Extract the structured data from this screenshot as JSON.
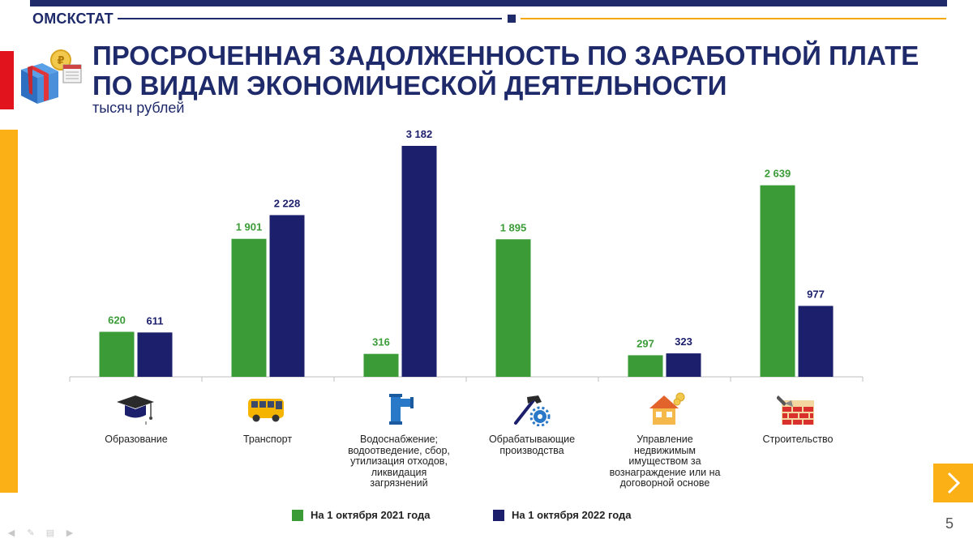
{
  "header": {
    "brand": "ОМСКСТАТ"
  },
  "title_line1": "ПРОСРОЧЕННАЯ ЗАДОЛЖЕННОСТЬ ПО ЗАРАБОТНОЙ ПЛАТЕ",
  "title_line2": "ПО ВИДАМ ЭКОНОМИЧЕСКОЙ ДЕЯТЕЛЬНОСТИ",
  "unit": "тысяч рублей",
  "colors": {
    "navy": "#1f2a6b",
    "green": "#3a9b37",
    "bar_navy": "#1c1f6b",
    "accent_yellow": "#fbb016",
    "accent_red": "#e1141e"
  },
  "chart_data": {
    "type": "bar",
    "categories": [
      "Образование",
      "Транспорт",
      "Водоснабжение; водоотведение, сбор, утилизация отходов, ликвидация загрязнений",
      "Обрабатывающие производства",
      "Управление недвижимым имуществом за вознаграждение или на договорной основе",
      "Строительство"
    ],
    "category_labels": [
      [
        "Образование"
      ],
      [
        "Транспорт"
      ],
      [
        "Водоснабжение;",
        "водоотведение, сбор,",
        "утилизация отходов,",
        "ликвидация",
        "загрязнений"
      ],
      [
        "Обрабатывающие",
        "производства"
      ],
      [
        "Управление",
        "недвижимым",
        "имуществом за",
        "вознаграждение или на",
        "договорной основе"
      ],
      [
        "Строительство"
      ]
    ],
    "category_icons": [
      "graduation-cap-icon",
      "bus-icon",
      "water-pipe-icon",
      "hammer-gear-icon",
      "house-coins-icon",
      "brick-wall-icon"
    ],
    "series": [
      {
        "name": "На 1 октября 2021 года",
        "color": "#3a9b37",
        "values": [
          620,
          1901,
          316,
          1895,
          297,
          2639
        ],
        "labels": [
          "620",
          "1 901",
          "316",
          "1 895",
          "297",
          "2 639"
        ]
      },
      {
        "name": "На 1 октября 2022 года",
        "color": "#1c1f6b",
        "values": [
          611,
          2228,
          3182,
          null,
          323,
          977
        ],
        "labels": [
          "611",
          "2 228",
          "3 182",
          "",
          "323",
          "977"
        ]
      }
    ],
    "ylim": [
      0,
      3182
    ],
    "grid": false,
    "legend_position": "bottom"
  },
  "nav": {
    "page_number": "5",
    "next_icon": "chevron-right-icon"
  }
}
